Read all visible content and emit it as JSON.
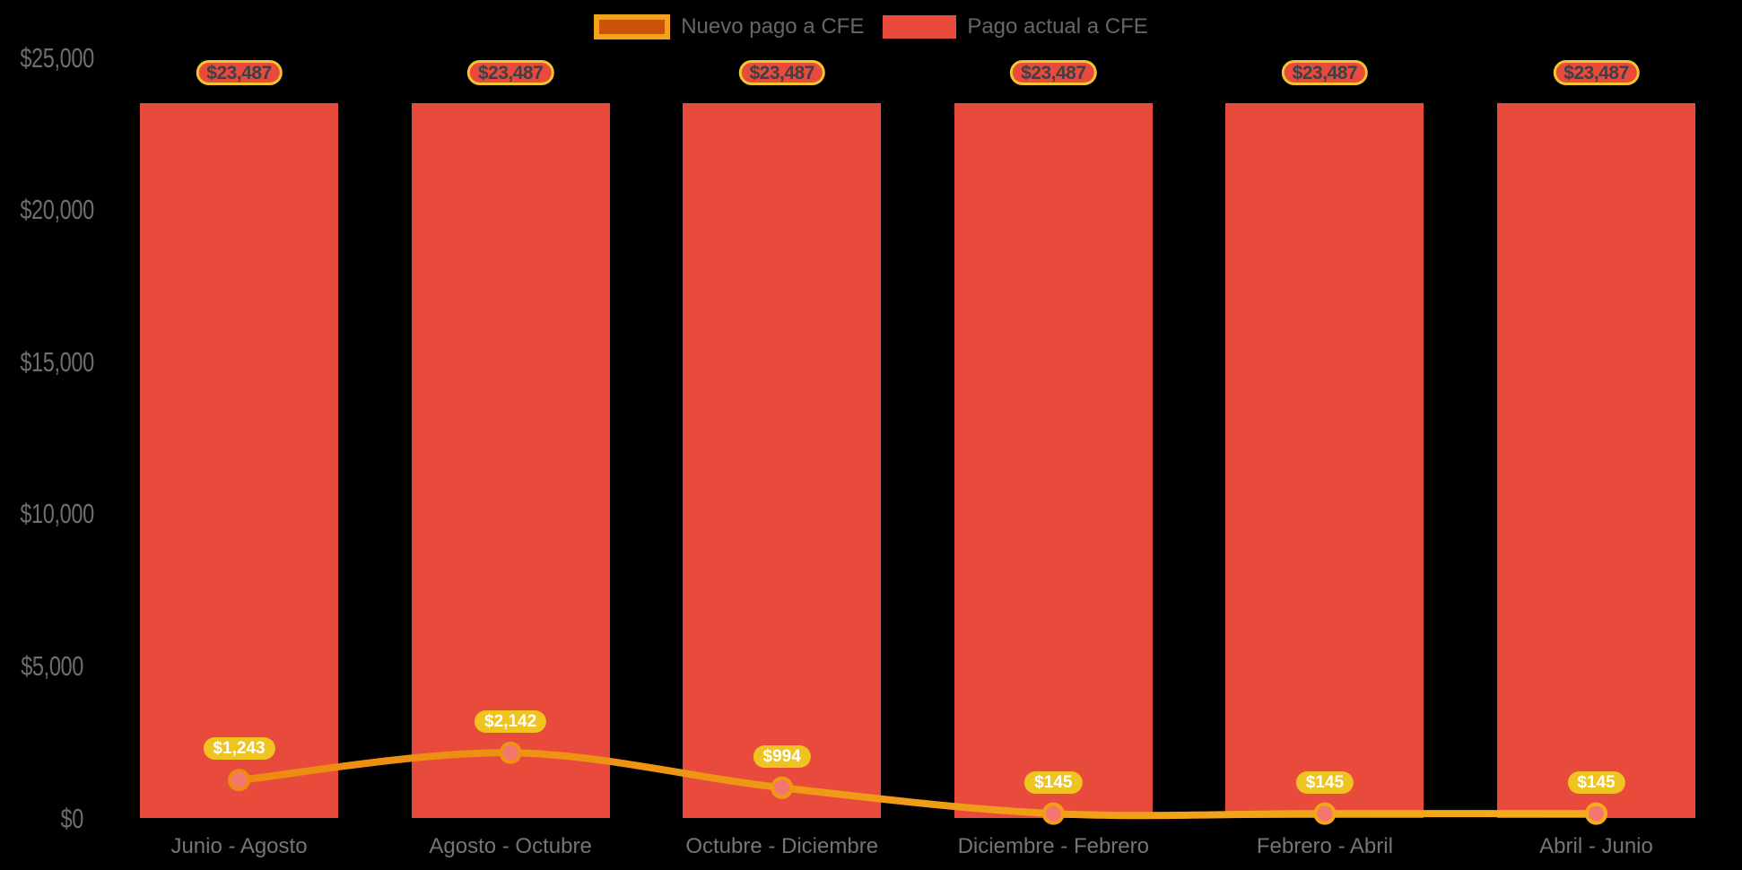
{
  "legend": {
    "items": [
      {
        "label": "Nuevo pago a CFE",
        "swatch": "line-swatch"
      },
      {
        "label": "Pago actual a CFE",
        "swatch": "bar-swatch"
      }
    ]
  },
  "chart_data": {
    "type": "bar+line",
    "categories": [
      "Junio - Agosto",
      "Agosto - Octubre",
      "Octubre - Diciembre",
      "Diciembre - Febrero",
      "Febrero - Abril",
      "Abril - Junio"
    ],
    "series": [
      {
        "name": "Pago actual a CFE",
        "type": "bar",
        "values": [
          23487,
          23487,
          23487,
          23487,
          23487,
          23487
        ],
        "labels": [
          "$23,487",
          "$23,487",
          "$23,487",
          "$23,487",
          "$23,487",
          "$23,487"
        ]
      },
      {
        "name": "Nuevo pago a CFE",
        "type": "line",
        "values": [
          1243,
          2142,
          994,
          145,
          145,
          145
        ],
        "labels": [
          "$1,243",
          "$2,142",
          "$994",
          "$145",
          "$145",
          "$145"
        ]
      }
    ],
    "yticks": [
      {
        "value": 0,
        "label": "$0"
      },
      {
        "value": 5000,
        "label": "$5,000"
      },
      {
        "value": 10000,
        "label": "$10,000"
      },
      {
        "value": 15000,
        "label": "$15,000"
      },
      {
        "value": 20000,
        "label": "$20,000"
      },
      {
        "value": 25000,
        "label": "$25,000"
      }
    ],
    "ylim": [
      0,
      25000
    ],
    "grid": false,
    "legend_position": "top-center"
  },
  "colors": {
    "background": "#000000",
    "bar": "#E84B3C",
    "badge_border": "#F1C52B",
    "badge_text": "#3A4149",
    "pill_fill": "#EFC320",
    "pill_text": "#FFFFFF",
    "line_gradient_start": "#EC8B10",
    "line_gradient_end": "#F4AC1C",
    "marker_fill": "#F4766F",
    "axis_text": "#6E6E6E",
    "xaxis_text": "#757575",
    "legend_text": "#666666",
    "legend_line_border": "#F2A21D",
    "legend_line_fill": "#CB5309"
  }
}
